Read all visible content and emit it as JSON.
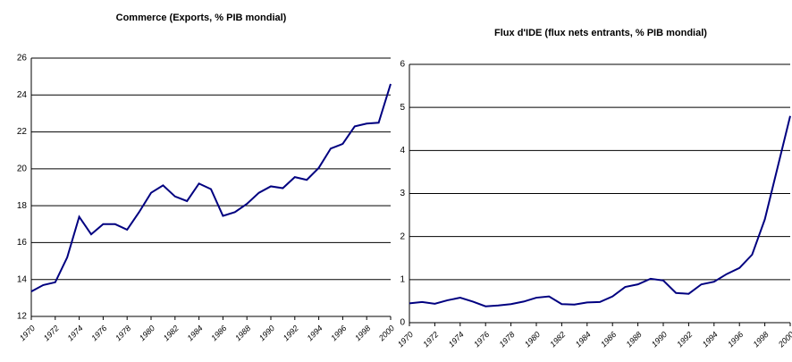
{
  "chart_data": [
    {
      "type": "line",
      "title": "Commerce (Exports, % PIB mondial)",
      "x": [
        1970,
        1971,
        1972,
        1973,
        1974,
        1975,
        1976,
        1977,
        1978,
        1979,
        1980,
        1981,
        1982,
        1983,
        1984,
        1985,
        1986,
        1987,
        1988,
        1989,
        1990,
        1991,
        1992,
        1993,
        1994,
        1995,
        1996,
        1997,
        1998,
        1999,
        2000
      ],
      "series": [
        {
          "color": "#000080",
          "values": [
            13.35,
            13.7,
            13.85,
            15.2,
            17.4,
            16.45,
            17.0,
            17.0,
            16.7,
            17.65,
            18.7,
            19.1,
            18.5,
            18.25,
            19.2,
            18.9,
            17.45,
            17.65,
            18.1,
            18.7,
            19.05,
            18.95,
            19.55,
            19.4,
            20.05,
            21.1,
            21.35,
            22.3,
            22.45,
            22.5,
            24.6
          ]
        }
      ],
      "xlim": [
        1970,
        2000
      ],
      "xticks": [
        1970,
        1972,
        1974,
        1976,
        1978,
        1980,
        1982,
        1984,
        1986,
        1988,
        1990,
        1992,
        1994,
        1996,
        1998,
        2000
      ],
      "ylim": [
        12,
        26
      ],
      "yticks": [
        12,
        14,
        16,
        18,
        20,
        22,
        24,
        26
      ],
      "grid": true
    },
    {
      "type": "line",
      "title": "Flux d'IDE (flux nets entrants, % PIB mondial)",
      "x": [
        1970,
        1971,
        1972,
        1973,
        1974,
        1975,
        1976,
        1977,
        1978,
        1979,
        1980,
        1981,
        1982,
        1983,
        1984,
        1985,
        1986,
        1987,
        1988,
        1989,
        1990,
        1991,
        1992,
        1993,
        1994,
        1995,
        1996,
        1997,
        1998,
        1999,
        2000
      ],
      "series": [
        {
          "color": "#000080",
          "values": [
            0.45,
            0.48,
            0.44,
            0.52,
            0.58,
            0.49,
            0.38,
            0.4,
            0.43,
            0.49,
            0.58,
            0.61,
            0.43,
            0.42,
            0.47,
            0.48,
            0.61,
            0.83,
            0.89,
            1.02,
            0.98,
            0.69,
            0.67,
            0.89,
            0.95,
            1.13,
            1.27,
            1.58,
            2.4,
            3.6,
            4.8
          ]
        }
      ],
      "xlim": [
        1970,
        2000
      ],
      "xticks": [
        1970,
        1972,
        1974,
        1976,
        1978,
        1980,
        1982,
        1984,
        1986,
        1988,
        1990,
        1992,
        1994,
        1996,
        1998,
        2000
      ],
      "ylim": [
        0,
        6
      ],
      "yticks": [
        0,
        1,
        2,
        3,
        4,
        5,
        6
      ],
      "grid": true
    }
  ]
}
